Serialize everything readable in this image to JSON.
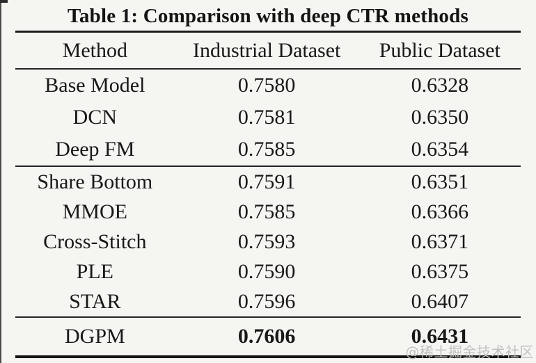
{
  "caption": "Table 1: Comparison with deep CTR methods",
  "watermark": "@稀土掘金技术社区",
  "colors": {
    "background": "#f5f5f2",
    "text": "#181818",
    "rule": "#1d1d1d",
    "watermark": "#c0c0c0"
  },
  "table": {
    "columns": [
      "Method",
      "Industrial Dataset",
      "Public Dataset"
    ],
    "sections": [
      {
        "rows": [
          {
            "method": "Base Model",
            "industrial": "0.7580",
            "public": "0.6328",
            "bold": false
          },
          {
            "method": "DCN",
            "industrial": "0.7581",
            "public": "0.6350",
            "bold": false
          },
          {
            "method": "Deep FM",
            "industrial": "0.7585",
            "public": "0.6354",
            "bold": false
          }
        ]
      },
      {
        "rows": [
          {
            "method": "Share Bottom",
            "industrial": "0.7591",
            "public": "0.6351",
            "bold": false
          },
          {
            "method": "MMOE",
            "industrial": "0.7585",
            "public": "0.6366",
            "bold": false
          },
          {
            "method": "Cross-Stitch",
            "industrial": "0.7593",
            "public": "0.6371",
            "bold": false
          },
          {
            "method": "PLE",
            "industrial": "0.7590",
            "public": "0.6375",
            "bold": false
          },
          {
            "method": "STAR",
            "industrial": "0.7596",
            "public": "0.6407",
            "bold": false
          }
        ]
      },
      {
        "rows": [
          {
            "method": "DGPM",
            "industrial": "0.7606",
            "public": "0.6431",
            "bold": true
          }
        ]
      }
    ]
  }
}
